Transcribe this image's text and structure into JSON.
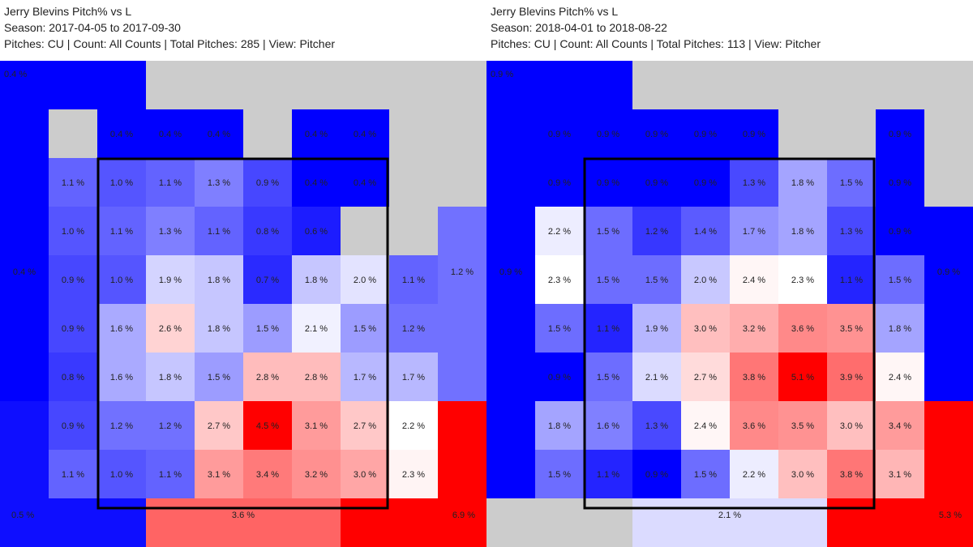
{
  "colors": {
    "background": "#cccccc",
    "low": "#0000ff",
    "mid": "#ffffff",
    "high": "#ff0000",
    "zone": "#000000"
  },
  "chart_data": [
    {
      "type": "heatmap",
      "title_lines": [
        "Jerry Blevins Pitch% vs L",
        "Season: 2017-04-05 to 2017-09-30",
        "Pitches: CU | Count: All Counts | Total Pitches: 285 | View: Pitcher"
      ],
      "scale": {
        "min": 0.4,
        "mid": 2.2,
        "max": 4.5
      },
      "grid": [
        [
          null,
          null,
          null,
          null,
          null,
          null,
          null,
          null,
          null,
          null
        ],
        [
          null,
          null,
          0.4,
          0.4,
          0.4,
          null,
          0.4,
          0.4,
          null,
          null
        ],
        [
          null,
          1.1,
          1.0,
          1.1,
          1.3,
          0.9,
          0.4,
          0.4,
          null,
          null
        ],
        [
          null,
          1.0,
          1.1,
          1.3,
          1.1,
          0.8,
          0.6,
          null,
          null,
          null
        ],
        [
          null,
          0.9,
          1.0,
          1.9,
          1.8,
          0.7,
          1.8,
          2.0,
          1.1,
          null
        ],
        [
          null,
          0.9,
          1.6,
          2.6,
          1.8,
          1.5,
          2.1,
          1.5,
          1.2,
          null
        ],
        [
          null,
          0.8,
          1.6,
          1.8,
          1.5,
          2.8,
          2.8,
          1.7,
          1.7,
          null
        ],
        [
          null,
          0.9,
          1.2,
          1.2,
          2.7,
          4.5,
          3.1,
          2.7,
          2.2,
          null
        ],
        [
          null,
          1.1,
          1.0,
          1.1,
          3.1,
          3.4,
          3.2,
          3.0,
          2.3,
          null
        ],
        [
          null,
          null,
          null,
          null,
          null,
          null,
          null,
          null,
          null,
          null
        ]
      ],
      "outer": [
        {
          "zone": "top-left",
          "value": 0.4,
          "label": "0.4 %",
          "fill": 0.4,
          "label_corner": "top-left"
        },
        {
          "zone": "left",
          "value": 0.4,
          "label": "0.4 %",
          "fill": 0.4,
          "label_corner": "middle"
        },
        {
          "zone": "bottom-left",
          "value": 0.5,
          "label": "0.5 %",
          "fill": 0.5,
          "label_corner": "bottom-left"
        },
        {
          "zone": "bottom",
          "value": 3.6,
          "label": "3.6 %",
          "fill": 3.6,
          "label_corner": "middle"
        },
        {
          "zone": "bottom-right",
          "value": 6.9,
          "label": "6.9 %",
          "fill": 6.9,
          "label_corner": "bottom-right"
        },
        {
          "zone": "right",
          "value": 1.2,
          "label": "1.2 %",
          "fill": 1.2,
          "label_corner": "middle"
        },
        {
          "zone": "top-right",
          "value": null,
          "label": "",
          "fill": null,
          "label_corner": "top-right"
        },
        {
          "zone": "top",
          "value": null,
          "label": "",
          "fill": null,
          "label_corner": "middle"
        }
      ]
    },
    {
      "type": "heatmap",
      "title_lines": [
        "Jerry Blevins Pitch% vs L",
        "Season: 2018-04-01 to 2018-08-22",
        "Pitches: CU | Count: All Counts | Total Pitches: 113 | View: Pitcher"
      ],
      "scale": {
        "min": 0.9,
        "mid": 2.3,
        "max": 5.1
      },
      "grid": [
        [
          null,
          null,
          null,
          null,
          null,
          null,
          null,
          null,
          null,
          null
        ],
        [
          null,
          0.9,
          0.9,
          0.9,
          0.9,
          0.9,
          null,
          null,
          0.9,
          null
        ],
        [
          null,
          0.9,
          0.9,
          0.9,
          0.9,
          1.3,
          1.8,
          1.5,
          0.9,
          null
        ],
        [
          null,
          2.2,
          1.5,
          1.2,
          1.4,
          1.7,
          1.8,
          1.3,
          0.9,
          null
        ],
        [
          null,
          2.3,
          1.5,
          1.5,
          2.0,
          2.4,
          2.3,
          1.1,
          1.5,
          null
        ],
        [
          null,
          1.5,
          1.1,
          1.9,
          3.0,
          3.2,
          3.6,
          3.5,
          1.8,
          null
        ],
        [
          null,
          0.9,
          1.5,
          2.1,
          2.7,
          3.8,
          5.1,
          3.9,
          2.4,
          null
        ],
        [
          null,
          1.8,
          1.6,
          1.3,
          2.4,
          3.6,
          3.5,
          3.0,
          3.4,
          null
        ],
        [
          null,
          1.5,
          1.1,
          0.9,
          1.5,
          2.2,
          3.0,
          3.8,
          3.1,
          null
        ],
        [
          null,
          null,
          null,
          null,
          null,
          null,
          null,
          null,
          null,
          null
        ]
      ],
      "outer": [
        {
          "zone": "top-left",
          "value": 0.9,
          "label": "0.9 %",
          "fill": 0.9,
          "label_corner": "top-left"
        },
        {
          "zone": "left",
          "value": 0.9,
          "label": "0.9 %",
          "fill": 0.9,
          "label_corner": "middle"
        },
        {
          "zone": "bottom-left",
          "value": null,
          "label": "",
          "fill": null,
          "label_corner": "bottom-left"
        },
        {
          "zone": "bottom",
          "value": 2.1,
          "label": "2.1 %",
          "fill": 2.1,
          "label_corner": "middle"
        },
        {
          "zone": "bottom-right",
          "value": 5.3,
          "label": "5.3 %",
          "fill": 5.3,
          "label_corner": "bottom-right"
        },
        {
          "zone": "right",
          "value": 0.9,
          "label": "0.9 %",
          "fill": 0.9,
          "label_corner": "middle"
        },
        {
          "zone": "top-right",
          "value": null,
          "label": "",
          "fill": null,
          "label_corner": "top-right"
        },
        {
          "zone": "top",
          "value": null,
          "label": "",
          "fill": null,
          "label_corner": "middle"
        }
      ]
    }
  ]
}
